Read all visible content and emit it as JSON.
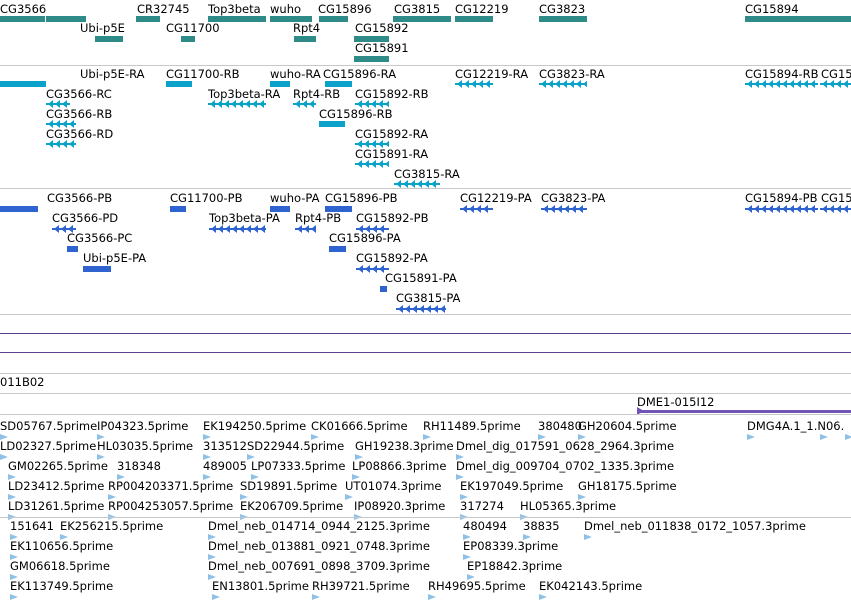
{
  "colors": {
    "gene": "#2e8b87",
    "transcript_r": "#0aa2c8",
    "transcript_p": "#2f64d0",
    "clone": "#7055b5",
    "est": "#8ec1e6",
    "separator": "#c8c8c8",
    "track_line": "#5a3f8c"
  },
  "tracks": {
    "genes": [
      {
        "label": "CG3566"
      },
      {
        "label": "CR32745"
      },
      {
        "label": "Top3beta"
      },
      {
        "label": "wuho"
      },
      {
        "label": "CG15896"
      },
      {
        "label": "CG3815"
      },
      {
        "label": "CG12219"
      },
      {
        "label": "CG3823"
      },
      {
        "label": "CG15894"
      },
      {
        "label": "Ubi-p5E"
      },
      {
        "label": "CG11700"
      },
      {
        "label": "Rpt4"
      },
      {
        "label": "CG15892"
      },
      {
        "label": "CG15891"
      }
    ],
    "transcripts_ra": [
      {
        "label": "Ubi-p5E-RA"
      },
      {
        "label": "CG11700-RB"
      },
      {
        "label": "wuho-RA"
      },
      {
        "label": "CG15896-RA"
      },
      {
        "label": "CG12219-RA"
      },
      {
        "label": "CG3823-RA"
      },
      {
        "label": "CG15894-RB"
      },
      {
        "label": "CG15"
      },
      {
        "label": "CG3566-RC"
      },
      {
        "label": "Top3beta-RA"
      },
      {
        "label": "Rpt4-RB"
      },
      {
        "label": "CG15892-RB"
      },
      {
        "label": "CG3566-RB"
      },
      {
        "label": "CG15896-RB"
      },
      {
        "label": "CG3566-RD"
      },
      {
        "label": "CG15892-RA"
      },
      {
        "label": "CG15891-RA"
      },
      {
        "label": "CG3815-RA"
      }
    ],
    "transcripts_pa": [
      {
        "label": "CG3566-PB"
      },
      {
        "label": "CG11700-PB"
      },
      {
        "label": "wuho-PA"
      },
      {
        "label": "CG15896-PB"
      },
      {
        "label": "CG12219-PA"
      },
      {
        "label": "CG3823-PA"
      },
      {
        "label": "CG15894-PB"
      },
      {
        "label": "CG15"
      },
      {
        "label": "CG3566-PD"
      },
      {
        "label": "Top3beta-PA"
      },
      {
        "label": "Rpt4-PB"
      },
      {
        "label": "CG15892-PB"
      },
      {
        "label": "CG3566-PC"
      },
      {
        "label": "CG15896-PA"
      },
      {
        "label": "Ubi-p5E-PA"
      },
      {
        "label": "CG15892-PA"
      },
      {
        "label": "CG15891-PA"
      },
      {
        "label": "CG3815-PA"
      }
    ],
    "clones": [
      {
        "label": "011B02"
      },
      {
        "label": "DME1-015I12"
      }
    ],
    "ests": [
      {
        "label": "SD05767.5prime"
      },
      {
        "label": "IP04323.5prime"
      },
      {
        "label": "EK194250.5prime"
      },
      {
        "label": "CK01666.5prime"
      },
      {
        "label": "RH11489.5prime"
      },
      {
        "label": "380480"
      },
      {
        "label": "GH20604.5prime"
      },
      {
        "label": "DMG4A.1_1.N06."
      },
      {
        "label": "LD02327.5prime"
      },
      {
        "label": "HL03035.5prime"
      },
      {
        "label": "313512"
      },
      {
        "label": "SD22944.5prime"
      },
      {
        "label": "GH19238.3prime"
      },
      {
        "label": "Dmel_dig_017591_0628_2964.3prime"
      },
      {
        "label": "GM02265.5prime"
      },
      {
        "label": "318348"
      },
      {
        "label": "489005"
      },
      {
        "label": "LP07333.5prime"
      },
      {
        "label": "LP08866.3prime"
      },
      {
        "label": "Dmel_dig_009704_0702_1335.3prime"
      },
      {
        "label": "LD23412.5prime"
      },
      {
        "label": "RP004203371.5prime"
      },
      {
        "label": "SD19891.5prime"
      },
      {
        "label": "UT01074.3prime"
      },
      {
        "label": "EK197049.5prime"
      },
      {
        "label": "GH18175.5prime"
      },
      {
        "label": "LD31261.5prime"
      },
      {
        "label": "RP004253057.5prime"
      },
      {
        "label": "EK206709.5prime"
      },
      {
        "label": "IP08920.3prime"
      },
      {
        "label": "317274"
      },
      {
        "label": "HL05365.3prime"
      },
      {
        "label": "151641"
      },
      {
        "label": "EK256215.5prime"
      },
      {
        "label": "Dmel_neb_014714_0944_2125.3prime"
      },
      {
        "label": "480494"
      },
      {
        "label": "38835"
      },
      {
        "label": "Dmel_neb_011838_0172_1057.3prime"
      },
      {
        "label": "EK110656.5prime"
      },
      {
        "label": "Dmel_neb_013881_0921_0748.3prime"
      },
      {
        "label": "EP08339.3prime"
      },
      {
        "label": "GM06618.5prime"
      },
      {
        "label": "Dmel_neb_007691_0898_3709.3prime"
      },
      {
        "label": "EP18842.3prime"
      },
      {
        "label": "EK113749.5prime"
      },
      {
        "label": "EN13801.5prime"
      },
      {
        "label": "RH39721.5prime"
      },
      {
        "label": "RH49695.5prime"
      },
      {
        "label": "EK042143.5prime"
      }
    ]
  }
}
